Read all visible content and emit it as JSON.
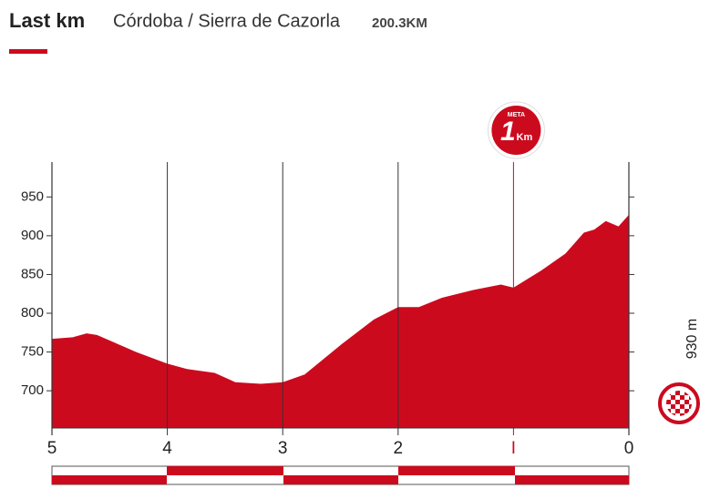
{
  "header": {
    "title": "Last km",
    "route": "Córdoba / Sierra de Cazorla",
    "distance": "200.3KM"
  },
  "chart_data": {
    "type": "area",
    "x": [
      5.0,
      4.82,
      4.7,
      4.61,
      4.27,
      4.0,
      3.83,
      3.59,
      3.41,
      3.19,
      3.0,
      2.81,
      2.49,
      2.21,
      2.0,
      1.82,
      1.62,
      1.35,
      1.11,
      1.0,
      0.76,
      0.55,
      0.39,
      0.3,
      0.2,
      0.09,
      0.0
    ],
    "values": [
      767,
      769,
      774,
      772,
      750,
      735,
      728,
      723,
      711,
      709,
      711,
      721,
      760,
      792,
      808,
      808,
      820,
      830,
      837,
      833,
      855,
      877,
      904,
      908,
      919,
      912,
      927
    ],
    "color": "#cc0a1e",
    "xlim": [
      5,
      0
    ],
    "xticks": [
      5,
      4,
      3,
      2,
      {
        "value": 1,
        "label": "I"
      },
      0
    ],
    "ylim": [
      652,
      995
    ],
    "yticks": [
      700,
      750,
      800,
      850,
      900,
      950
    ],
    "finish_elevation": "930 m",
    "finish_marker": {
      "top": "META",
      "number": "1",
      "unit": "Km"
    }
  }
}
